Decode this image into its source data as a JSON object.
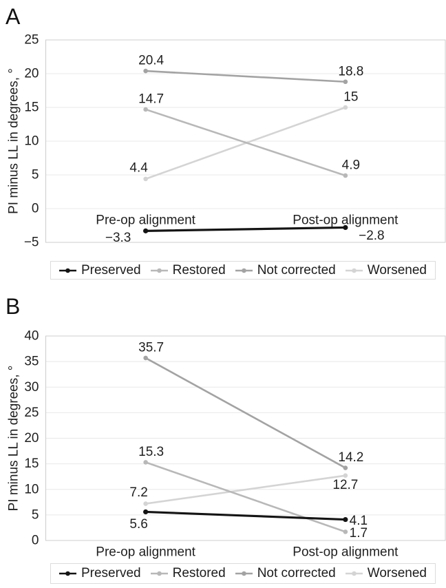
{
  "colors": {
    "background": "#ffffff",
    "grid": "#e8e8e8",
    "plot_border": "#cccccc",
    "text": "#1f1f1f",
    "legend_border": "#dcdcdc",
    "preserved": "#141414",
    "restored": "#b8b8b8",
    "not_corrected": "#a3a3a3",
    "worsened": "#d4d4d4"
  },
  "chart_data": [
    {
      "type": "line",
      "panel_label": "A",
      "title": "",
      "xlabel": "",
      "ylabel": "PI minus LL in degrees, °",
      "categories": [
        "Pre-op alignment",
        "Post-op alignment"
      ],
      "ylim": [
        -5,
        25
      ],
      "ytick_step": 5,
      "yticks": [
        25,
        20,
        15,
        10,
        5,
        0,
        -5
      ],
      "grid": true,
      "legend_position": "bottom",
      "category_label_placement": "at-zero-line",
      "series": [
        {
          "name": "Preserved",
          "color": "#141414",
          "values": [
            -3.3,
            -2.8
          ],
          "labels": [
            "−3.3",
            "−2.8"
          ],
          "label_placement": [
            "left-below",
            "right-below"
          ]
        },
        {
          "name": "Restored",
          "color": "#b8b8b8",
          "values": [
            14.7,
            4.9
          ],
          "labels": [
            "14.7",
            "4.9"
          ],
          "label_placement": [
            "above",
            "above"
          ]
        },
        {
          "name": "Not corrected",
          "color": "#a3a3a3",
          "values": [
            20.4,
            18.8
          ],
          "labels": [
            "20.4",
            "18.8"
          ],
          "label_placement": [
            "above",
            "above"
          ]
        },
        {
          "name": "Worsened",
          "color": "#d4d4d4",
          "values": [
            4.4,
            15
          ],
          "labels": [
            "4.4",
            "15"
          ],
          "label_placement": [
            "above-left",
            "above"
          ]
        }
      ]
    },
    {
      "type": "line",
      "panel_label": "B",
      "title": "",
      "xlabel": "",
      "ylabel": "PI minus LL in degrees, °",
      "categories": [
        "Pre-op alignment",
        "Post-op alignment"
      ],
      "ylim": [
        0,
        40
      ],
      "ytick_step": 5,
      "yticks": [
        40,
        35,
        30,
        25,
        20,
        15,
        10,
        5,
        0
      ],
      "grid": true,
      "legend_position": "bottom",
      "category_label_placement": "below-axis",
      "series": [
        {
          "name": "Preserved",
          "color": "#141414",
          "values": [
            5.6,
            4.1
          ],
          "labels": [
            "5.6",
            "4.1"
          ],
          "label_placement": [
            "below-left",
            "right"
          ]
        },
        {
          "name": "Restored",
          "color": "#b8b8b8",
          "values": [
            15.3,
            1.7
          ],
          "labels": [
            "15.3",
            "1.7"
          ],
          "label_placement": [
            "above",
            "right"
          ]
        },
        {
          "name": "Not corrected",
          "color": "#a3a3a3",
          "values": [
            35.7,
            14.2
          ],
          "labels": [
            "35.7",
            "14.2"
          ],
          "label_placement": [
            "above",
            "above"
          ]
        },
        {
          "name": "Worsened",
          "color": "#d4d4d4",
          "values": [
            7.2,
            12.7
          ],
          "labels": [
            "7.2",
            "12.7"
          ],
          "label_placement": [
            "above-left",
            "below"
          ]
        }
      ]
    }
  ]
}
